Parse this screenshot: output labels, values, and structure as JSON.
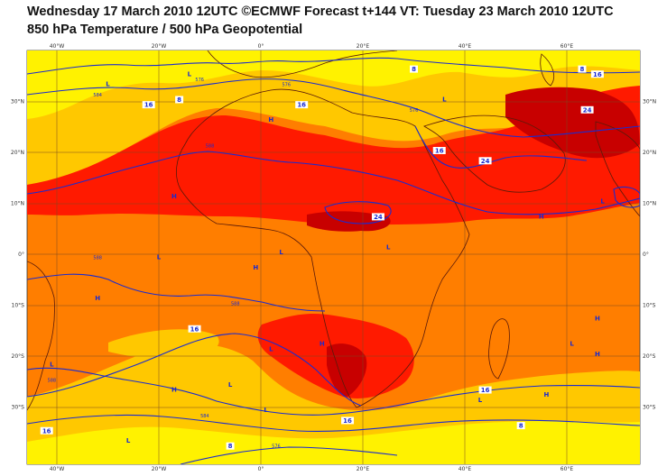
{
  "header": {
    "line1": "Wednesday 17 March 2010 12UTC ©ECMWF Forecast t+144 VT: Tuesday 23 March 2010 12UTC",
    "line2": "850 hPa Temperature / 500 hPa Geopotential"
  },
  "axes": {
    "top_lon": [
      "40°W",
      "20°W",
      "0°",
      "20°E",
      "40°E",
      "60°E"
    ],
    "bottom_lon": [
      "40°W",
      "20°W",
      "0°",
      "20°E",
      "40°E",
      "60°E"
    ],
    "left_lat": [
      "30°N",
      "20°N",
      "10°N",
      "0°",
      "10°S",
      "20°S",
      "30°S"
    ],
    "right_lat": [
      "30°N",
      "20°N",
      "10°N",
      "0°",
      "10°S",
      "20°S",
      "30°S"
    ]
  },
  "colors": {
    "yellow": "#fff200",
    "gold": "#ffc800",
    "orange": "#ff7e00",
    "red": "#ff1a00",
    "darkred": "#c80000",
    "contour": "#1a2bd0",
    "coast": "#5a1a0a",
    "grid": "#7a4a20"
  },
  "pressure_labels": [
    {
      "text": "L",
      "lon": -30,
      "lat": 33
    },
    {
      "text": "L",
      "lon": -14,
      "lat": 35
    },
    {
      "text": "H",
      "lon": 2,
      "lat": 26
    },
    {
      "text": "L",
      "lon": 36,
      "lat": 30
    },
    {
      "text": "H",
      "lon": -17,
      "lat": 11
    },
    {
      "text": "L",
      "lon": 67,
      "lat": 10
    },
    {
      "text": "H",
      "lon": 55,
      "lat": 7
    },
    {
      "text": "L",
      "lon": -20,
      "lat": -1
    },
    {
      "text": "L",
      "lon": 4,
      "lat": 0
    },
    {
      "text": "L",
      "lon": 25,
      "lat": 1
    },
    {
      "text": "H",
      "lon": -1,
      "lat": -3
    },
    {
      "text": "H",
      "lon": -32,
      "lat": -9
    },
    {
      "text": "H",
      "lon": 66,
      "lat": -13
    },
    {
      "text": "L",
      "lon": 2,
      "lat": -19
    },
    {
      "text": "H",
      "lon": 12,
      "lat": -18
    },
    {
      "text": "L",
      "lon": 61,
      "lat": -18
    },
    {
      "text": "H",
      "lon": 66,
      "lat": -20
    },
    {
      "text": "L",
      "lon": -41,
      "lat": -22
    },
    {
      "text": "H",
      "lon": -17,
      "lat": -27
    },
    {
      "text": "L",
      "lon": -6,
      "lat": -26
    },
    {
      "text": "H",
      "lon": 56,
      "lat": -28
    },
    {
      "text": "L",
      "lon": 43,
      "lat": -29
    },
    {
      "text": "L",
      "lon": 1,
      "lat": -31
    },
    {
      "text": "L",
      "lon": -26,
      "lat": -37
    }
  ],
  "temperature_labels": [
    {
      "text": "8",
      "lon": -16,
      "lat": 30
    },
    {
      "text": "8",
      "lon": 30,
      "lat": 36
    },
    {
      "text": "8",
      "lon": 63,
      "lat": 36
    },
    {
      "text": "16",
      "lon": -22,
      "lat": 29
    },
    {
      "text": "16",
      "lon": 8,
      "lat": 29
    },
    {
      "text": "16",
      "lon": 66,
      "lat": 35
    },
    {
      "text": "16",
      "lon": 35,
      "lat": 20
    },
    {
      "text": "16",
      "lon": -13,
      "lat": -15
    },
    {
      "text": "16",
      "lon": 44,
      "lat": -27
    },
    {
      "text": "16",
      "lon": -42,
      "lat": -35
    },
    {
      "text": "16",
      "lon": 17,
      "lat": -33
    },
    {
      "text": "24",
      "lon": 64,
      "lat": 28
    },
    {
      "text": "24",
      "lon": 44,
      "lat": 18
    },
    {
      "text": "24",
      "lon": 23,
      "lat": 7
    },
    {
      "text": "8",
      "lon": -6,
      "lat": -38
    },
    {
      "text": "8",
      "lon": 51,
      "lat": -34
    }
  ],
  "geopotential_labels": [
    {
      "text": "584",
      "lon": -32,
      "lat": 31
    },
    {
      "text": "576",
      "lon": -12,
      "lat": 34
    },
    {
      "text": "576",
      "lon": 5,
      "lat": 33
    },
    {
      "text": "576",
      "lon": 30,
      "lat": 28
    },
    {
      "text": "588",
      "lon": -10,
      "lat": 21
    },
    {
      "text": "588",
      "lon": -32,
      "lat": -1
    },
    {
      "text": "588",
      "lon": -5,
      "lat": -10
    },
    {
      "text": "588",
      "lon": -41,
      "lat": -25
    },
    {
      "text": "584",
      "lon": -11,
      "lat": -32
    },
    {
      "text": "576",
      "lon": 3,
      "lat": -38
    }
  ]
}
